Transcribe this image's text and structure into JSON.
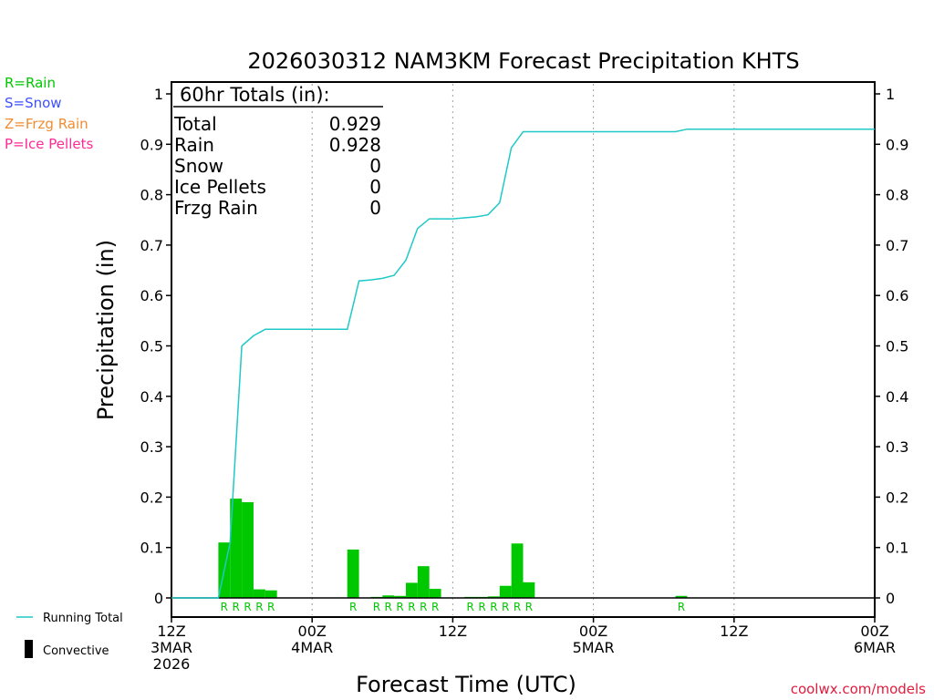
{
  "colors": {
    "rain": "#00c800",
    "snow": "#3c50ff",
    "frzg_rain": "#f08c32",
    "ice_pellets": "#ff2896",
    "running_total": "#20c8c8",
    "axis": "#000000",
    "grid": "#a0a0a0",
    "credit": "#e01c3c"
  },
  "legend": {
    "types": [
      "R=Rain",
      "S=Snow",
      "Z=Frzg Rain",
      "P=Ice Pellets"
    ],
    "running_total": "Running Total",
    "convective": "Convective"
  },
  "totals": {
    "header": "60hr Totals (in):",
    "rows": [
      {
        "label": "Total",
        "value": "0.929"
      },
      {
        "label": "Rain",
        "value": "0.928"
      },
      {
        "label": "Snow",
        "value": "0"
      },
      {
        "label": "Ice Pellets",
        "value": "0"
      },
      {
        "label": "Frzg Rain",
        "value": "0"
      }
    ]
  },
  "credit": "coolwx.com/models",
  "chart_data": {
    "type": "bar",
    "title": "2026030312 NAM3KM Forecast Precipitation KHTS",
    "xlabel": "Forecast Time (UTC)",
    "ylabel": "Precipitation (in)",
    "ylim": [
      0,
      1
    ],
    "xlim_hours": [
      0,
      60
    ],
    "yticks": [
      "0",
      "0.1",
      "0.2",
      "0.3",
      "0.4",
      "0.5",
      "0.6",
      "0.7",
      "0.8",
      "0.9",
      "1"
    ],
    "yticks_right": [
      "0",
      "0.1",
      "0.2",
      "0.3",
      "0.4",
      "0.5",
      "0.6",
      "0.7",
      "0.8",
      "0.9",
      "1"
    ],
    "xticks": [
      {
        "hour": 0,
        "lines": [
          "12Z",
          "3MAR",
          "2026"
        ]
      },
      {
        "hour": 12,
        "lines": [
          "00Z",
          "4MAR"
        ]
      },
      {
        "hour": 24,
        "lines": [
          "12Z"
        ]
      },
      {
        "hour": 36,
        "lines": [
          "00Z",
          "5MAR"
        ]
      },
      {
        "hour": 48,
        "lines": [
          "12Z"
        ]
      },
      {
        "hour": 60,
        "lines": [
          "00Z",
          "6MAR"
        ]
      }
    ],
    "grid_hours": [
      12,
      24,
      36,
      48
    ],
    "series": [
      {
        "name": "Hourly Precipitation",
        "bars": [
          {
            "hour": 5,
            "value": 0.11,
            "ptype": "R"
          },
          {
            "hour": 6,
            "value": 0.197,
            "ptype": "R"
          },
          {
            "hour": 7,
            "value": 0.19,
            "ptype": "R"
          },
          {
            "hour": 8,
            "value": 0.017,
            "ptype": "R"
          },
          {
            "hour": 9,
            "value": 0.015,
            "ptype": "R"
          },
          {
            "hour": 16,
            "value": 0.096,
            "ptype": "R"
          },
          {
            "hour": 18,
            "value": 0.002,
            "ptype": "R"
          },
          {
            "hour": 19,
            "value": 0.005,
            "ptype": "R"
          },
          {
            "hour": 20,
            "value": 0.004,
            "ptype": "R"
          },
          {
            "hour": 21,
            "value": 0.03,
            "ptype": "R"
          },
          {
            "hour": 22,
            "value": 0.063,
            "ptype": "R"
          },
          {
            "hour": 23,
            "value": 0.018,
            "ptype": "R"
          },
          {
            "hour": 26,
            "value": 0.002,
            "ptype": "R"
          },
          {
            "hour": 27,
            "value": 0.002,
            "ptype": "R"
          },
          {
            "hour": 28,
            "value": 0.003,
            "ptype": "R"
          },
          {
            "hour": 29,
            "value": 0.024,
            "ptype": "R"
          },
          {
            "hour": 30,
            "value": 0.108,
            "ptype": "R"
          },
          {
            "hour": 31,
            "value": 0.031,
            "ptype": "R"
          },
          {
            "hour": 44,
            "value": 0.004,
            "ptype": "R"
          }
        ]
      },
      {
        "name": "Running Total",
        "x": [
          0,
          1,
          2,
          3,
          4,
          5,
          6,
          7,
          8,
          9,
          10,
          11,
          12,
          13,
          14,
          15,
          16,
          17,
          18,
          19,
          20,
          21,
          22,
          23,
          24,
          25,
          26,
          27,
          28,
          29,
          30,
          31,
          32,
          33,
          34,
          35,
          36,
          37,
          38,
          39,
          40,
          41,
          42,
          43,
          44,
          45,
          46,
          47,
          48,
          49,
          50,
          51,
          52,
          53,
          54,
          55,
          56,
          57,
          58,
          59,
          60
        ],
        "values": [
          0,
          0,
          0,
          0,
          0,
          0.11,
          0.5,
          0.52,
          0.533,
          0.533,
          0.533,
          0.533,
          0.533,
          0.533,
          0.533,
          0.533,
          0.629,
          0.631,
          0.634,
          0.64,
          0.67,
          0.733,
          0.752,
          0.752,
          0.752,
          0.754,
          0.756,
          0.76,
          0.784,
          0.893,
          0.925,
          0.925,
          0.925,
          0.925,
          0.925,
          0.925,
          0.925,
          0.925,
          0.925,
          0.925,
          0.925,
          0.925,
          0.925,
          0.925,
          0.93,
          0.93,
          0.93,
          0.93,
          0.93,
          0.93,
          0.93,
          0.93,
          0.93,
          0.93,
          0.93,
          0.93,
          0.93,
          0.93,
          0.93,
          0.93,
          0.93
        ]
      }
    ]
  }
}
